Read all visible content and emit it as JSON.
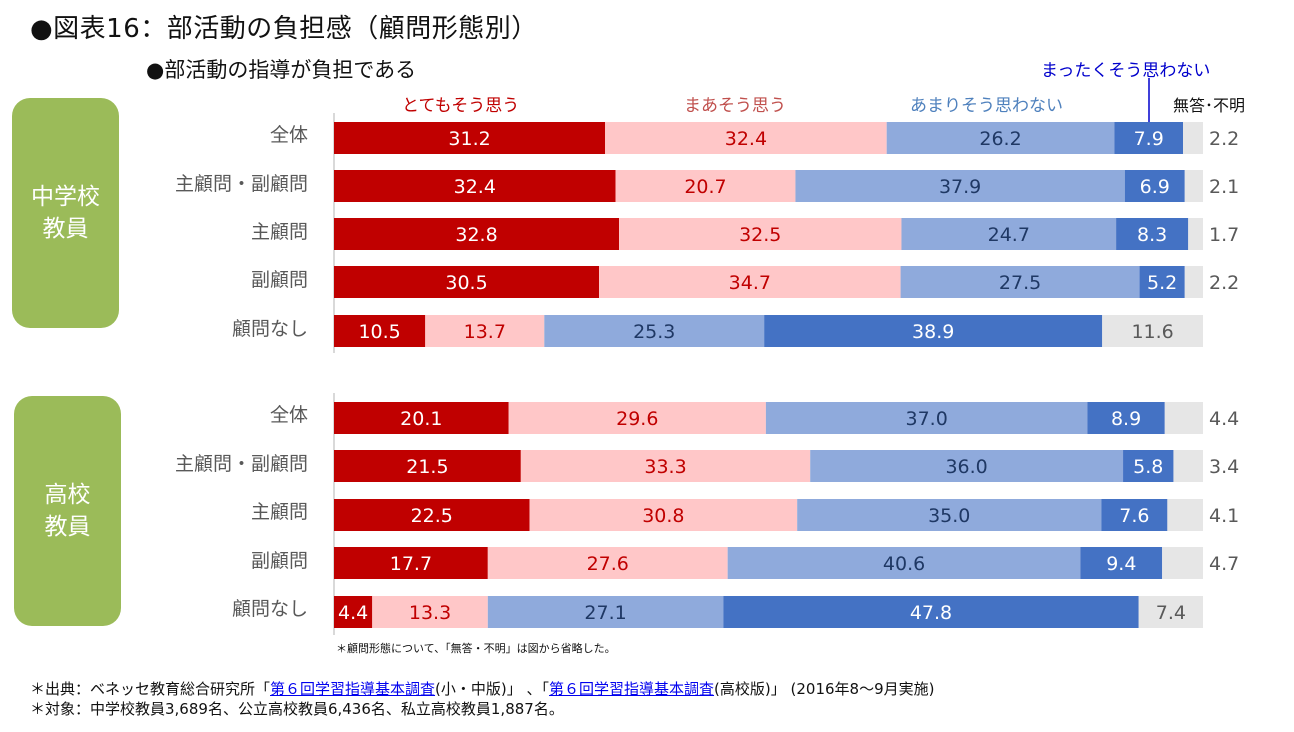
{
  "header": {
    "title": "●図表16：部活動の負担感（顧問形態別）",
    "subtitle": "●部活動の指導が負担である"
  },
  "colors": {
    "strongly_agree": "#c00000",
    "somewhat_agree": "#ffc7c8",
    "somewhat_disagree": "#8faadc",
    "strongly_disagree": "#4472c4",
    "no_answer": "#e6e6e6",
    "group_box": "#9bbb59"
  },
  "chart_data": {
    "type": "bar",
    "orientation": "horizontal",
    "stacked": true,
    "title": "部活動の指導が負担である",
    "xlabel": "",
    "ylabel": "",
    "xlim": [
      0,
      100
    ],
    "unit": "%",
    "grid": false,
    "legend": [
      {
        "key": "strongly_agree",
        "label": "とてもそう思う",
        "color": "#c00000"
      },
      {
        "key": "somewhat_agree",
        "label": "まあそう思う",
        "color": "#ffc7c8"
      },
      {
        "key": "somewhat_disagree",
        "label": "あまりそう思わない",
        "color": "#8faadc"
      },
      {
        "key": "strongly_disagree",
        "label": "まったくそう思わない",
        "color": "#4472c4"
      },
      {
        "key": "no_answer",
        "label": "無答･不明",
        "color": "#e6e6e6"
      }
    ],
    "groups": [
      {
        "name": "中学校教員",
        "label_lines": [
          "中学校",
          "教員"
        ],
        "categories": [
          "全体",
          "主顧問・副顧問",
          "主顧問",
          "副顧問",
          "顧問なし"
        ],
        "series": [
          {
            "name": "とてもそう思う",
            "values": [
              31.2,
              32.4,
              32.8,
              30.5,
              10.5
            ]
          },
          {
            "name": "まあそう思う",
            "values": [
              32.4,
              20.7,
              32.5,
              34.7,
              13.7
            ]
          },
          {
            "name": "あまりそう思わない",
            "values": [
              26.2,
              37.9,
              24.7,
              27.5,
              25.3
            ]
          },
          {
            "name": "まったくそう思わない",
            "values": [
              7.9,
              6.9,
              8.3,
              5.2,
              38.9
            ]
          },
          {
            "name": "無答･不明",
            "values": [
              2.2,
              2.1,
              1.7,
              2.2,
              11.6
            ]
          }
        ]
      },
      {
        "name": "高校教員",
        "label_lines": [
          "高校",
          "教員"
        ],
        "categories": [
          "全体",
          "主顧問・副顧問",
          "主顧問",
          "副顧問",
          "顧問なし"
        ],
        "series": [
          {
            "name": "とてもそう思う",
            "values": [
              20.1,
              21.5,
              22.5,
              17.7,
              4.4
            ]
          },
          {
            "name": "まあそう思う",
            "values": [
              29.6,
              33.3,
              30.8,
              27.6,
              13.3
            ]
          },
          {
            "name": "あまりそう思わない",
            "values": [
              37.0,
              36.0,
              35.0,
              40.6,
              27.1
            ]
          },
          {
            "name": "まったくそう思わない",
            "values": [
              8.9,
              5.8,
              7.6,
              9.4,
              47.8
            ]
          },
          {
            "name": "無答･不明",
            "values": [
              4.4,
              3.4,
              4.1,
              4.7,
              7.4
            ]
          }
        ]
      }
    ]
  },
  "notes": {
    "omission_note": "＊顧問形態について、「無答・不明」は図から省略した。"
  },
  "footer": {
    "source_prefix": "＊出典：ベネッセ教育総合研究所「",
    "source_link1": "第６回学習指導基本調査",
    "source_mid1": "(小・中版)」 、「",
    "source_link2": "第６回学習指導基本調査",
    "source_suffix": "(高校版)」 (2016年8～9月実施)",
    "subjects": "＊対象：中学校教員3,689名、公立高校教員6,436名、私立高校教員1,887名。"
  }
}
